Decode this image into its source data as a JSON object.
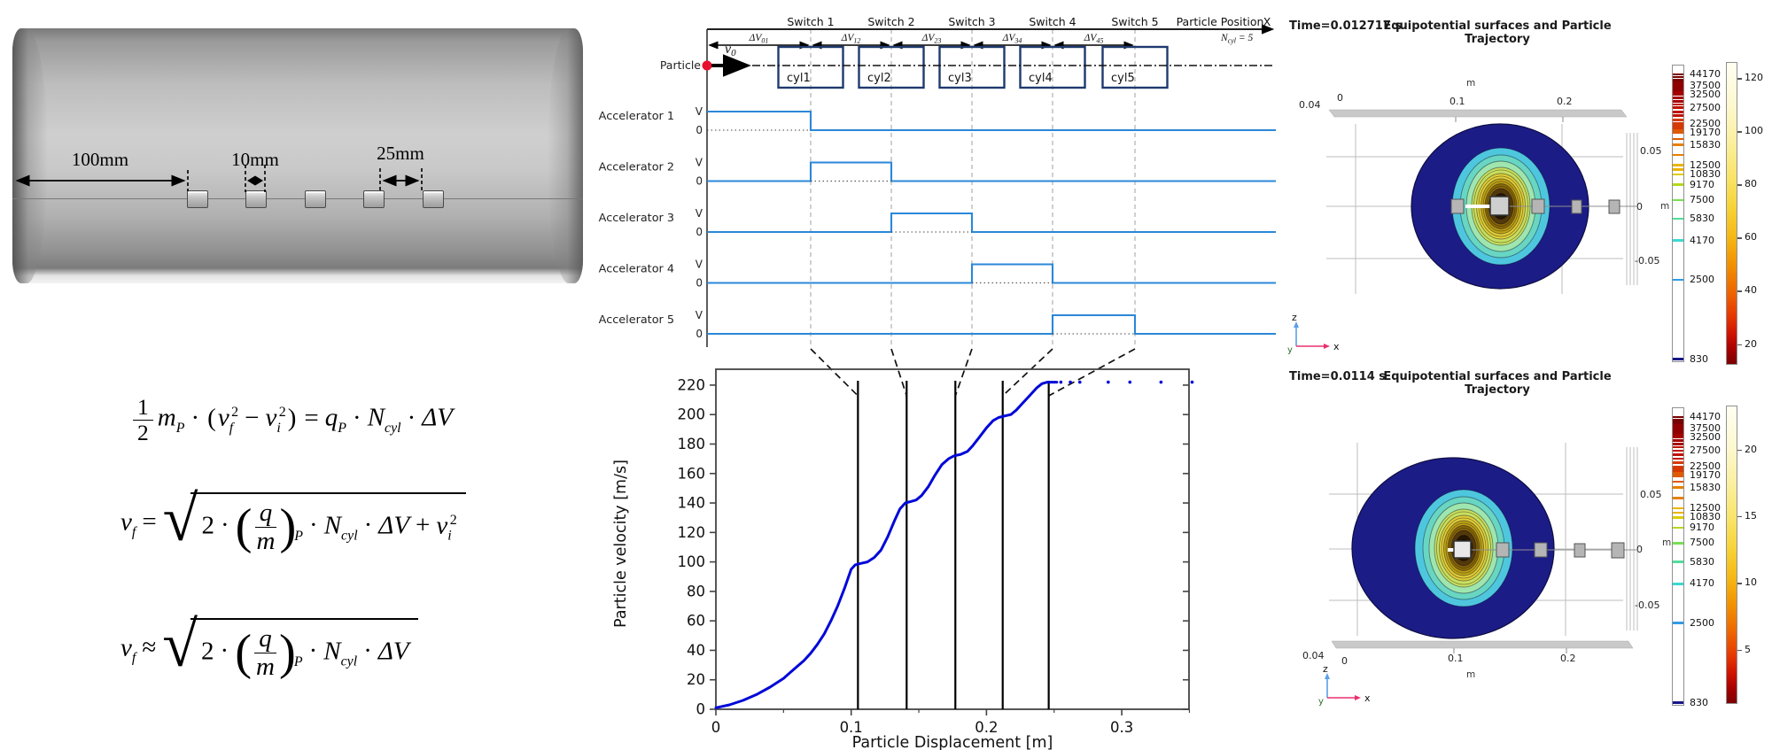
{
  "render3d": {
    "dims": [
      "100mm",
      "10mm",
      "25mm"
    ]
  },
  "equations": {
    "one": "1",
    "two": "2",
    "m": "m",
    "P": "P",
    "v": "v",
    "f": "f",
    "i": "i",
    "q": "q",
    "N": "N",
    "cyl": "cyl",
    "dV": "ΔV",
    "dot": "·",
    "plus": "+",
    "minus": "−",
    "eq": "=",
    "approx": "≈",
    "sup2": "2",
    "lp": "(",
    "rp": ")",
    "radical": "√"
  },
  "timing": {
    "switch_labels": [
      "Switch 1",
      "Switch 2",
      "Switch 3",
      "Switch 4",
      "Switch 5"
    ],
    "particle_position_label": "Particle Position",
    "x_axis_label": "X",
    "ncyl": {
      "base": "N",
      "sub": "cyl",
      "value": "= 5"
    },
    "dv_base": "ΔV",
    "dv_subs": [
      "01",
      "12",
      "23",
      "34",
      "45"
    ],
    "cylinders": [
      "cyl1",
      "cyl2",
      "cyl3",
      "cyl4",
      "cyl5"
    ],
    "particle_label": "Particle",
    "v0": {
      "base": "v",
      "sub": "0"
    },
    "accelerators": [
      "Accelerator 1",
      "Accelerator 2",
      "Accelerator 3",
      "Accelerator 4",
      "Accelerator 5"
    ],
    "v_label": "V",
    "zero_label": "0"
  },
  "chart_data": {
    "type": "line",
    "title": "",
    "xlabel": "Particle Displacement [m]",
    "ylabel": "Particle velocity [m/s]",
    "xlim": [
      0,
      0.35
    ],
    "ylim": [
      0,
      230
    ],
    "grid": false,
    "xticks": [
      0,
      0.1,
      0.2,
      0.3
    ],
    "xtick_labels": [
      "0",
      "0.1",
      "0.2",
      "0.3"
    ],
    "minor_xticks": [
      0.05,
      0.15,
      0.25,
      0.35
    ],
    "yticks": [
      0,
      20,
      40,
      60,
      80,
      100,
      120,
      140,
      160,
      180,
      200,
      220
    ],
    "ytick_labels": [
      "0",
      "20",
      "40",
      "60",
      "80",
      "100",
      "120",
      "140",
      "160",
      "180",
      "200",
      "220"
    ],
    "series": [
      {
        "name": "particle velocity",
        "color": "#0008d8",
        "x": [
          0,
          0.01,
          0.02,
          0.03,
          0.04,
          0.05,
          0.055,
          0.06,
          0.065,
          0.07,
          0.075,
          0.08,
          0.085,
          0.09,
          0.095,
          0.1,
          0.103,
          0.107,
          0.112,
          0.117,
          0.122,
          0.127,
          0.132,
          0.136,
          0.14,
          0.144,
          0.148,
          0.152,
          0.157,
          0.162,
          0.167,
          0.172,
          0.176,
          0.181,
          0.186,
          0.19,
          0.195,
          0.2,
          0.205,
          0.209,
          0.213,
          0.218,
          0.222,
          0.227,
          0.232,
          0.237,
          0.241,
          0.245,
          0.252
        ],
        "y": [
          1,
          3,
          6,
          10,
          15,
          21,
          25,
          29,
          33,
          38,
          44,
          51,
          60,
          70,
          82,
          95,
          98,
          99,
          100,
          103,
          108,
          117,
          128,
          136,
          140,
          141,
          142,
          145,
          151,
          159,
          166,
          170,
          172,
          173,
          175,
          179,
          185,
          191,
          196,
          198,
          199,
          200,
          203,
          208,
          213,
          218,
          221,
          222,
          222
        ]
      }
    ],
    "switch_lines_x": [
      0.105,
      0.141,
      0.177,
      0.212,
      0.246
    ],
    "terminal_dots": {
      "y": 222,
      "x": [
        0.255,
        0.262,
        0.269,
        0.29,
        0.306,
        0.329,
        0.352
      ]
    }
  },
  "comsol": {
    "unit": "m",
    "triad": {
      "x": "x",
      "y": "y",
      "z": "z"
    },
    "potential_values": [
      44170,
      37500,
      32500,
      27500,
      22500,
      19170,
      15830,
      12500,
      10830,
      9170,
      7500,
      5830,
      4170,
      2500,
      830
    ],
    "plots": [
      {
        "time": "Time=0.012717 s",
        "title": "Equipotential surfaces and Particle Trajectory",
        "x_ticks": {
          "corner": "0.04",
          "zero": "0",
          "t1": "0.1",
          "t2": "0.2"
        },
        "y_ticks": [
          "0.05",
          "0",
          "-0.05"
        ],
        "velocity_ticks": [
          120,
          100,
          80,
          60,
          40,
          20
        ]
      },
      {
        "time": "Time=0.0114 s",
        "title": "Equipotential surfaces and Particle Trajectory",
        "x_ticks": {
          "corner": "0.04",
          "zero": "0",
          "t1": "0.1",
          "t2": "0.2"
        },
        "y_ticks": [
          "0.05",
          "0",
          "-0.05"
        ],
        "velocity_ticks": [
          20,
          15,
          10,
          5
        ]
      }
    ]
  }
}
